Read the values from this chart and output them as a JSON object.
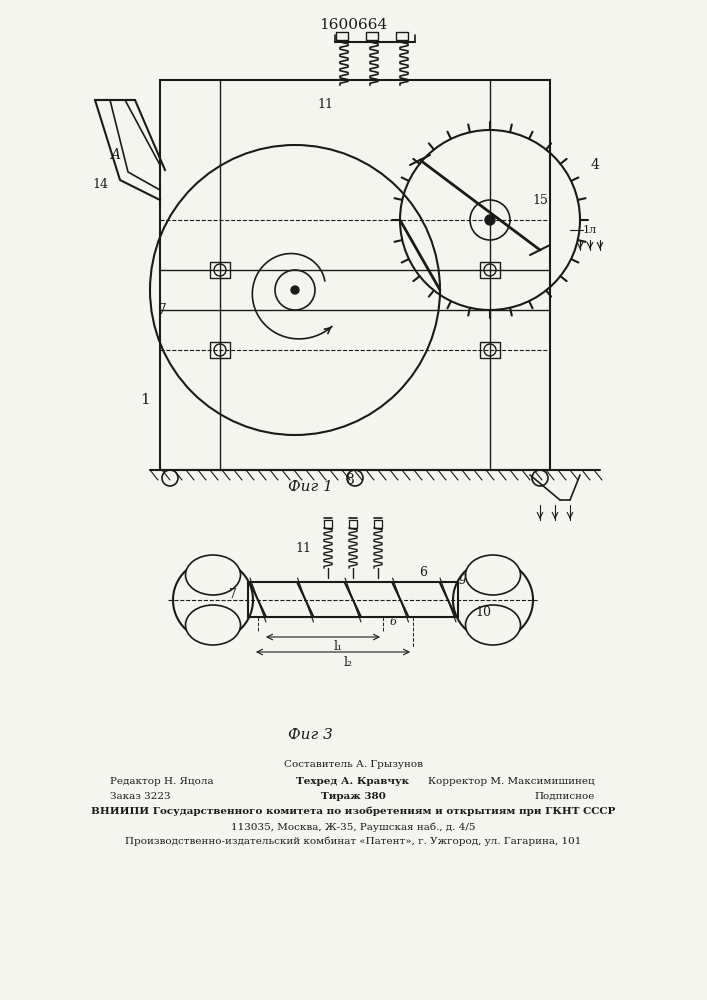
{
  "title": "1600664",
  "fig1_label": "Фиг 1",
  "fig3_label": "Фиг 3",
  "footer_line1": "Составитель А. Грызунов",
  "footer_line2_left": "Редактор Н. Яцола",
  "footer_line2_mid": "Техред А. Кравчук",
  "footer_line2_right": "Корректор М. Максимишинец",
  "footer_line3_left": "Заказ 3223",
  "footer_line3_mid": "Тираж 380",
  "footer_line3_right": "Подписное",
  "footer_line4": "ВНИИПИ Государственного комитета по изобретениям и открытиям при ГКНТ СССР",
  "footer_line5": "113035, Москва, Ж-35, Раушская наб., д. 4/5",
  "footer_line6": "Производственно-издательский комбинат «Патент», г. Ужгород, ул. Гагарина, 101",
  "bg_color": "#f5f5f0",
  "line_color": "#1a1a1a"
}
